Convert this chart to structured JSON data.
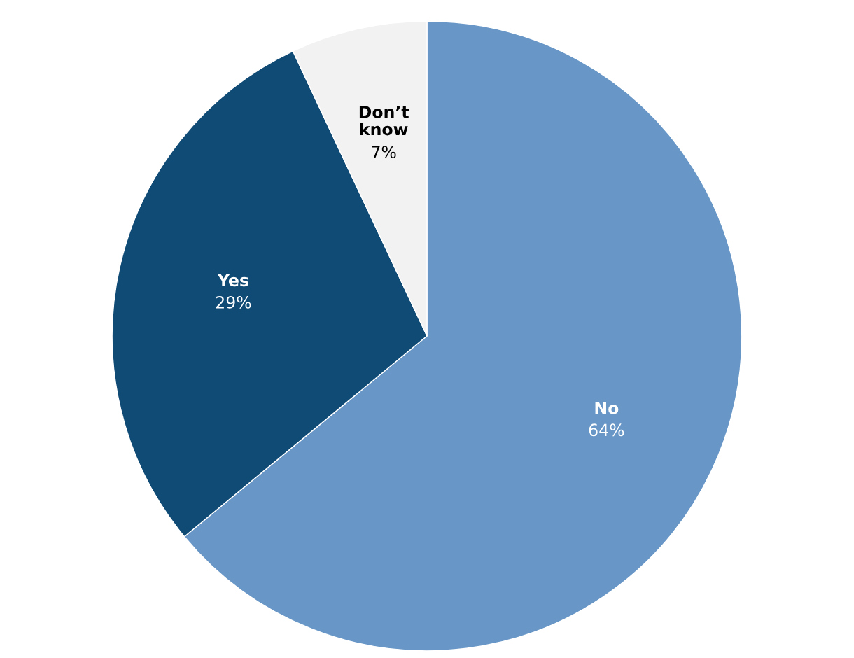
{
  "chart_data": {
    "type": "pie",
    "categories": [
      "No",
      "Yes",
      "Don’t know"
    ],
    "values": [
      64,
      29,
      7
    ],
    "colors": [
      "#6897c7",
      "#104b76",
      "#f2f2f2"
    ],
    "value_labels": [
      "64%",
      "29%",
      "7%"
    ]
  }
}
